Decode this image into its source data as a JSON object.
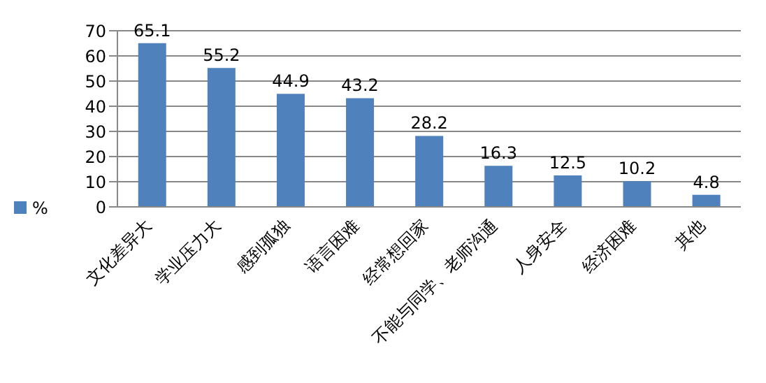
{
  "chart_data": {
    "type": "bar",
    "categories": [
      "文化差异大",
      "学业压力大",
      "感到孤独",
      "语言困难",
      "经常想回家",
      "不能与同学、老师沟通",
      "人身安全",
      "经济困难",
      "其他"
    ],
    "series": [
      {
        "name": "%",
        "color": "#4f81bd",
        "values": [
          65.1,
          55.2,
          44.9,
          43.2,
          28.2,
          16.3,
          12.5,
          10.2,
          4.8
        ]
      }
    ],
    "ylim": [
      0,
      70
    ],
    "yticks": [
      0,
      10,
      20,
      30,
      40,
      50,
      60,
      70
    ],
    "grid": "y",
    "legend": "left",
    "data_labels": true
  }
}
